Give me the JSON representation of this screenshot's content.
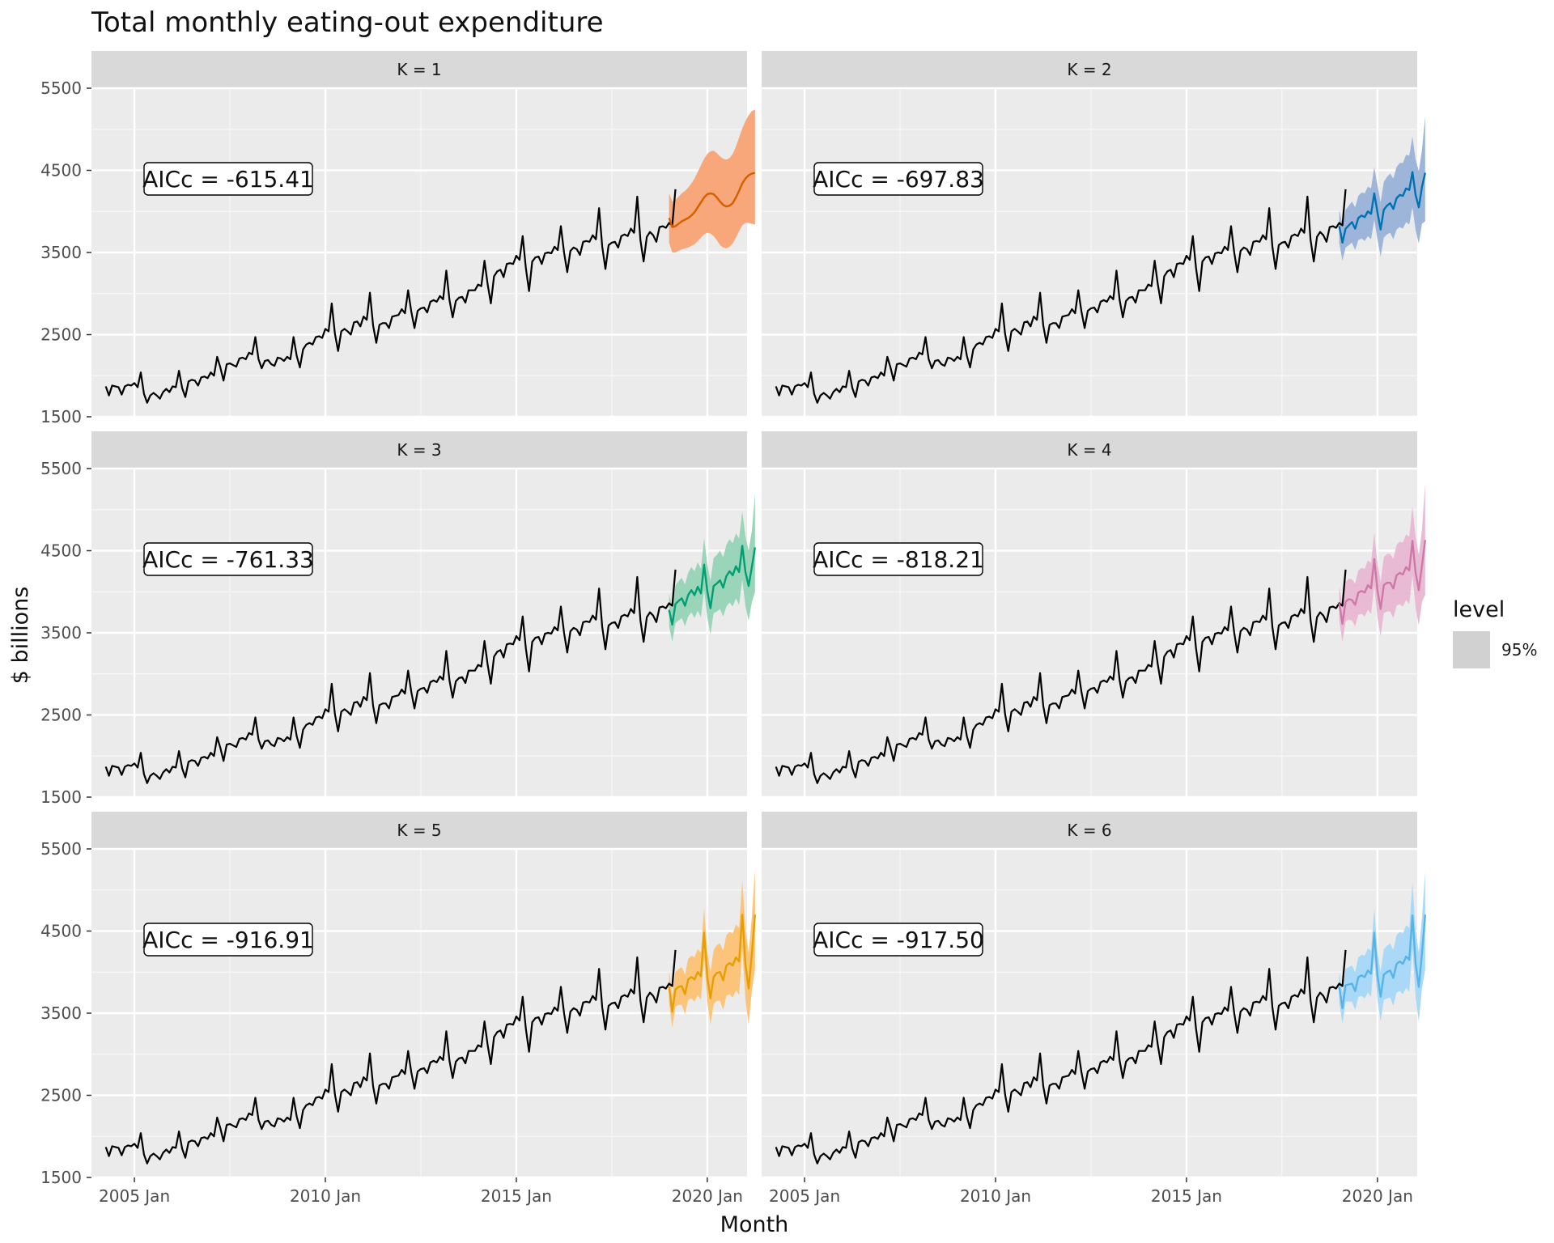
{
  "chart_data": {
    "type": "line",
    "title": "Total monthly eating-out expenditure",
    "xlabel": "Month",
    "ylabel": "$ billions",
    "x_ticks": [
      "2005 Jan",
      "2010 Jan",
      "2015 Jan",
      "2020 Jan"
    ],
    "y_ticks": [
      1500,
      2500,
      3500,
      4500,
      5500
    ],
    "ylim": [
      1500,
      5500
    ],
    "xlim": [
      "2004 Jan",
      "2020 Dec"
    ],
    "grid": true,
    "legend": {
      "title": "level",
      "entries": [
        "95%"
      ],
      "position": "right"
    },
    "history": {
      "start": "2004 Apr",
      "end": "2018 Dec",
      "frequency": "monthly",
      "values": [
        1870,
        1760,
        1880,
        1870,
        1860,
        1770,
        1870,
        1890,
        1880,
        1910,
        1860,
        2040,
        1780,
        1670,
        1760,
        1790,
        1760,
        1720,
        1800,
        1840,
        1800,
        1870,
        1860,
        2060,
        1850,
        1740,
        1930,
        1950,
        1940,
        1880,
        1980,
        1990,
        1970,
        2040,
        2000,
        2230,
        2100,
        1940,
        2140,
        2150,
        2130,
        2110,
        2210,
        2220,
        2200,
        2280,
        2260,
        2470,
        2200,
        2090,
        2180,
        2190,
        2140,
        2120,
        2220,
        2210,
        2180,
        2230,
        2200,
        2470,
        2240,
        2100,
        2320,
        2380,
        2400,
        2380,
        2470,
        2480,
        2460,
        2570,
        2540,
        2880,
        2510,
        2300,
        2540,
        2570,
        2540,
        2500,
        2650,
        2660,
        2600,
        2720,
        2680,
        3010,
        2610,
        2400,
        2620,
        2640,
        2640,
        2580,
        2720,
        2730,
        2740,
        2810,
        2760,
        3040,
        2780,
        2580,
        2790,
        2820,
        2830,
        2770,
        2900,
        2920,
        2900,
        2970,
        2930,
        3280,
        2920,
        2710,
        2910,
        2950,
        2960,
        2890,
        3040,
        3040,
        3040,
        3110,
        3090,
        3400,
        3110,
        2880,
        3210,
        3270,
        3290,
        3200,
        3360,
        3370,
        3360,
        3460,
        3410,
        3700,
        3310,
        3030,
        3390,
        3440,
        3450,
        3360,
        3490,
        3500,
        3490,
        3570,
        3530,
        3820,
        3500,
        3260,
        3520,
        3560,
        3540,
        3470,
        3630,
        3640,
        3630,
        3710,
        3660,
        4040,
        3570,
        3300,
        3590,
        3620,
        3630,
        3560,
        3700,
        3720,
        3700,
        3790,
        3740,
        4180,
        3650,
        3390,
        3690,
        3750,
        3710,
        3630,
        3810,
        3820,
        3800,
        3860,
        3830,
        4270
      ]
    },
    "panels": [
      {
        "strip": "K = 1",
        "annotation": "AICc = -615.41",
        "color": "#D55E00",
        "band_color": "#f7a779",
        "forecast": {
          "start": "2019 Jan",
          "mean": [
            3920,
            3810,
            3820,
            3850,
            3880,
            3900,
            3920,
            3950,
            3990,
            4050,
            4110,
            4170,
            4210,
            4220,
            4210,
            4170,
            4120,
            4080,
            4060,
            4070,
            4100,
            4170,
            4250,
            4340,
            4400,
            4440,
            4460,
            4470
          ],
          "lower": [
            3620,
            3500,
            3500,
            3520,
            3540,
            3550,
            3560,
            3580,
            3600,
            3640,
            3680,
            3720,
            3740,
            3730,
            3700,
            3650,
            3590,
            3560,
            3550,
            3570,
            3610,
            3680,
            3760,
            3830,
            3860,
            3860,
            3850,
            3840
          ],
          "upper": [
            4220,
            4120,
            4140,
            4180,
            4220,
            4250,
            4290,
            4340,
            4400,
            4480,
            4560,
            4640,
            4700,
            4730,
            4740,
            4710,
            4670,
            4640,
            4630,
            4650,
            4700,
            4790,
            4900,
            5010,
            5100,
            5170,
            5220,
            5240
          ]
        }
      },
      {
        "strip": "K = 2",
        "annotation": "AICc = -697.83",
        "color": "#0072B2",
        "band_color": "#9db5d9",
        "forecast": {
          "start": "2019 Jan",
          "mean": [
            3820,
            3620,
            3790,
            3830,
            3870,
            3790,
            3920,
            3950,
            3930,
            4000,
            3970,
            4220,
            3990,
            3780,
            4020,
            4070,
            4100,
            4030,
            4160,
            4200,
            4190,
            4280,
            4260,
            4480,
            4200,
            4050,
            4300,
            4470
          ],
          "lower": [
            3620,
            3400,
            3560,
            3590,
            3620,
            3530,
            3650,
            3670,
            3640,
            3700,
            3660,
            3900,
            3660,
            3450,
            3680,
            3720,
            3740,
            3660,
            3780,
            3810,
            3790,
            3870,
            3840,
            4050,
            3770,
            3610,
            3850,
            3880
          ],
          "upper": [
            4020,
            3840,
            4020,
            4070,
            4120,
            4050,
            4190,
            4230,
            4220,
            4300,
            4280,
            4540,
            4320,
            4110,
            4360,
            4420,
            4460,
            4400,
            4540,
            4590,
            4590,
            4690,
            4680,
            4910,
            4630,
            4490,
            4750,
            5160
          ]
        }
      },
      {
        "strip": "K = 3",
        "annotation": "AICc = -761.33",
        "color": "#009E73",
        "band_color": "#9ad5b9",
        "forecast": {
          "start": "2019 Jan",
          "mean": [
            3780,
            3600,
            3850,
            3890,
            3920,
            3830,
            3960,
            4020,
            3960,
            4060,
            3980,
            4330,
            4010,
            3800,
            4070,
            4100,
            4140,
            4050,
            4190,
            4250,
            4200,
            4310,
            4240,
            4560,
            4240,
            4070,
            4300,
            4540
          ],
          "lower": [
            3580,
            3390,
            3620,
            3650,
            3680,
            3580,
            3700,
            3750,
            3680,
            3770,
            3690,
            4020,
            3690,
            3480,
            3740,
            3760,
            3790,
            3700,
            3820,
            3870,
            3820,
            3920,
            3840,
            4150,
            3820,
            3650,
            3870,
            4000
          ],
          "upper": [
            3980,
            3810,
            4080,
            4130,
            4170,
            4090,
            4230,
            4300,
            4250,
            4360,
            4280,
            4650,
            4340,
            4130,
            4410,
            4450,
            4500,
            4420,
            4570,
            4640,
            4590,
            4710,
            4650,
            4980,
            4670,
            4500,
            4740,
            5190
          ]
        }
      },
      {
        "strip": "K = 4",
        "annotation": "AICc = -818.21",
        "color": "#CC79A7",
        "band_color": "#e9bad3",
        "forecast": {
          "start": "2019 Jan",
          "mean": [
            3860,
            3610,
            3880,
            3910,
            3900,
            3840,
            3990,
            4010,
            3990,
            4080,
            4040,
            4400,
            4020,
            3790,
            4080,
            4110,
            4110,
            4040,
            4200,
            4230,
            4210,
            4300,
            4260,
            4620,
            4230,
            4020,
            4320,
            4630
          ],
          "lower": [
            3650,
            3390,
            3640,
            3660,
            3650,
            3580,
            3720,
            3730,
            3700,
            3780,
            3730,
            4080,
            3690,
            3460,
            3740,
            3760,
            3760,
            3680,
            3830,
            3850,
            3820,
            3900,
            3850,
            4200,
            3800,
            3590,
            3880,
            3960
          ],
          "upper": [
            4070,
            3830,
            4120,
            4160,
            4150,
            4100,
            4260,
            4290,
            4280,
            4380,
            4350,
            4720,
            4350,
            4120,
            4420,
            4460,
            4460,
            4400,
            4570,
            4610,
            4600,
            4700,
            4670,
            5040,
            4660,
            4450,
            4760,
            5310
          ]
        }
      },
      {
        "strip": "K = 5",
        "annotation": "AICc = -916.91",
        "color": "#E69F00",
        "band_color": "#fcc47a",
        "forecast": {
          "start": "2019 Jan",
          "mean": [
            3820,
            3520,
            3790,
            3820,
            3830,
            3730,
            3910,
            3940,
            3910,
            4000,
            3950,
            4480,
            3950,
            3680,
            3940,
            3990,
            4000,
            3900,
            4080,
            4110,
            4080,
            4180,
            4130,
            4700,
            4090,
            3800,
            4220,
            4700
          ],
          "lower": [
            3630,
            3320,
            3580,
            3600,
            3600,
            3490,
            3660,
            3680,
            3640,
            3720,
            3660,
            4180,
            3640,
            3360,
            3610,
            3650,
            3650,
            3540,
            3710,
            3730,
            3690,
            3780,
            3720,
            4280,
            3660,
            3360,
            3770,
            4030
          ],
          "upper": [
            4010,
            3720,
            4000,
            4040,
            4060,
            3970,
            4160,
            4200,
            4180,
            4280,
            4240,
            4780,
            4260,
            4000,
            4270,
            4330,
            4350,
            4260,
            4450,
            4490,
            4470,
            4580,
            4540,
            5120,
            4520,
            4240,
            4670,
            5240
          ]
        }
      },
      {
        "strip": "K = 6",
        "annotation": "AICc = -917.50",
        "color": "#56B4E9",
        "band_color": "#a9d9f6",
        "forecast": {
          "start": "2019 Jan",
          "mean": [
            3820,
            3560,
            3840,
            3850,
            3860,
            3770,
            3940,
            3960,
            3940,
            4020,
            3980,
            4480,
            3960,
            3700,
            3970,
            4000,
            4020,
            3930,
            4100,
            4130,
            4100,
            4190,
            4150,
            4690,
            4100,
            3820,
            4230,
            4700
          ],
          "lower": [
            3640,
            3370,
            3640,
            3640,
            3640,
            3540,
            3700,
            3710,
            3680,
            3750,
            3700,
            4190,
            3670,
            3400,
            3660,
            3680,
            3690,
            3590,
            3750,
            3770,
            3730,
            3810,
            3760,
            4290,
            3690,
            3400,
            3800,
            4030
          ],
          "upper": [
            4000,
            3750,
            4040,
            4060,
            4080,
            4000,
            4180,
            4210,
            4200,
            4290,
            4260,
            4770,
            4250,
            4000,
            4280,
            4320,
            4350,
            4270,
            4450,
            4490,
            4470,
            4570,
            4540,
            5090,
            4510,
            4240,
            4660,
            5220
          ]
        }
      }
    ]
  }
}
